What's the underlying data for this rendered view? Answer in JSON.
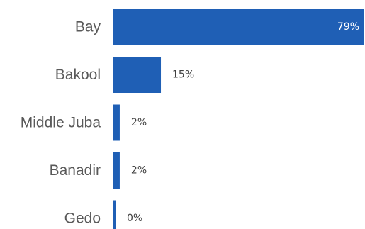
{
  "chart_data": {
    "type": "bar",
    "orientation": "horizontal",
    "categories": [
      "Bay",
      "Bakool",
      "Middle Juba",
      "Banadir",
      "Gedo"
    ],
    "values": [
      79,
      15,
      2,
      2,
      0
    ],
    "value_labels": [
      "79%",
      "15%",
      "2%",
      "2%",
      "0%"
    ],
    "unit": "%",
    "xlim": [
      0,
      79
    ],
    "grid": false,
    "legend": "none",
    "colors": {
      "bar": "#1f5fb5",
      "category_text": "#595959",
      "value_text_inside": "#ffffff",
      "value_text_outside": "#404040"
    }
  }
}
